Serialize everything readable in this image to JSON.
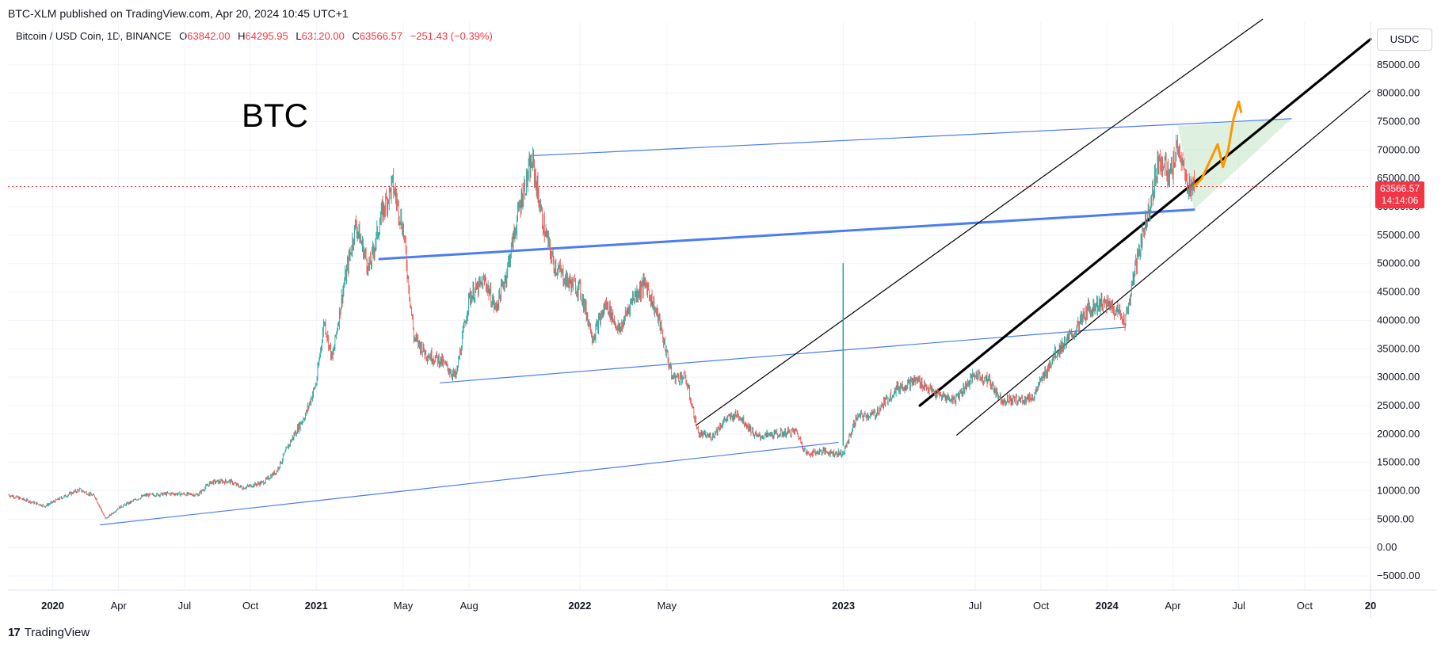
{
  "header": {
    "published": "BTC-XLM published on TradingView.com, Apr 20, 2024 10:45 UTC+1"
  },
  "legend": {
    "symbol": "Bitcoin / USD Coin, 1D, BINANCE",
    "open_label": "O",
    "open": "63842.00",
    "high_label": "H",
    "high": "64295.95",
    "low_label": "L",
    "low": "63120.00",
    "close_label": "C",
    "close": "63566.57",
    "change": "−251.43 (−0.39%)"
  },
  "annotation": {
    "text": "BTC"
  },
  "currency_button": "USDC",
  "last_price": {
    "price": "63566.57",
    "countdown": "14:14:06",
    "value": 63566.57
  },
  "footer": {
    "brand": "TradingView",
    "logo_glyph": "17"
  },
  "colors": {
    "up": "#26a69a",
    "down": "#ef5350",
    "trend_blue": "#4a7cf5",
    "channel": "#000000",
    "projection": "#ff9800",
    "zone": "#c8e6c9",
    "price_tag": "#f23645"
  },
  "chart_data": {
    "type": "line",
    "title": "Bitcoin / USD Coin, 1D, BINANCE",
    "xlabel": "",
    "ylabel": "USDC",
    "ylim": [
      -7500,
      92500
    ],
    "xlim": [
      2019.83,
      2025.0
    ],
    "grid": true,
    "y_ticks": [
      -5000,
      0,
      5000,
      10000,
      15000,
      20000,
      25000,
      30000,
      35000,
      40000,
      45000,
      50000,
      55000,
      60000,
      65000,
      70000,
      75000,
      80000,
      85000
    ],
    "y_tick_labels": [
      "−5000.00",
      "0.00",
      "5000.00",
      "10000.00",
      "15000.00",
      "20000.00",
      "25000.00",
      "30000.00",
      "35000.00",
      "40000.00",
      "45000.00",
      "50000.00",
      "55000.00",
      "60000.00",
      "65000.00",
      "70000.00",
      "75000.00",
      "80000.00",
      "85000.00"
    ],
    "x_ticks": [
      {
        "label": "2020",
        "t": 2020.0,
        "bold": true
      },
      {
        "label": "Apr",
        "t": 2020.25,
        "bold": false
      },
      {
        "label": "Jul",
        "t": 2020.5,
        "bold": false
      },
      {
        "label": "Oct",
        "t": 2020.75,
        "bold": false
      },
      {
        "label": "2021",
        "t": 2021.0,
        "bold": true
      },
      {
        "label": "May",
        "t": 2021.33,
        "bold": false
      },
      {
        "label": "Aug",
        "t": 2021.58,
        "bold": false
      },
      {
        "label": "2022",
        "t": 2022.0,
        "bold": true
      },
      {
        "label": "May",
        "t": 2022.33,
        "bold": false
      },
      {
        "label": "2023",
        "t": 2023.0,
        "bold": true
      },
      {
        "label": "Jul",
        "t": 2023.5,
        "bold": false
      },
      {
        "label": "Oct",
        "t": 2023.75,
        "bold": false
      },
      {
        "label": "2024",
        "t": 2024.0,
        "bold": true
      },
      {
        "label": "Apr",
        "t": 2024.25,
        "bold": false
      },
      {
        "label": "Jul",
        "t": 2024.5,
        "bold": false
      },
      {
        "label": "Oct",
        "t": 2024.75,
        "bold": false
      },
      {
        "label": "20",
        "t": 2025.0,
        "bold": true
      }
    ],
    "series": [
      {
        "name": "BTC/USDC close",
        "points": [
          [
            2019.83,
            9300
          ],
          [
            2019.9,
            8300
          ],
          [
            2019.97,
            7300
          ],
          [
            2020.03,
            8700
          ],
          [
            2020.1,
            10200
          ],
          [
            2020.16,
            9000
          ],
          [
            2020.2,
            5000
          ],
          [
            2020.25,
            7000
          ],
          [
            2020.35,
            9200
          ],
          [
            2020.45,
            9500
          ],
          [
            2020.55,
            9300
          ],
          [
            2020.6,
            11500
          ],
          [
            2020.67,
            11700
          ],
          [
            2020.72,
            10500
          ],
          [
            2020.8,
            11500
          ],
          [
            2020.85,
            13500
          ],
          [
            2020.9,
            18500
          ],
          [
            2020.96,
            23500
          ],
          [
            2021.0,
            29000
          ],
          [
            2021.03,
            40000
          ],
          [
            2021.06,
            33000
          ],
          [
            2021.1,
            45000
          ],
          [
            2021.15,
            57000
          ],
          [
            2021.2,
            49000
          ],
          [
            2021.25,
            59000
          ],
          [
            2021.29,
            64000
          ],
          [
            2021.33,
            56000
          ],
          [
            2021.37,
            37000
          ],
          [
            2021.42,
            34000
          ],
          [
            2021.47,
            33000
          ],
          [
            2021.53,
            30000
          ],
          [
            2021.58,
            44000
          ],
          [
            2021.64,
            47000
          ],
          [
            2021.68,
            42000
          ],
          [
            2021.72,
            48000
          ],
          [
            2021.78,
            62000
          ],
          [
            2021.82,
            68000
          ],
          [
            2021.86,
            57000
          ],
          [
            2021.9,
            50000
          ],
          [
            2021.95,
            47000
          ],
          [
            2022.0,
            45500
          ],
          [
            2022.05,
            37000
          ],
          [
            2022.1,
            43000
          ],
          [
            2022.15,
            38000
          ],
          [
            2022.2,
            44000
          ],
          [
            2022.25,
            46500
          ],
          [
            2022.3,
            40000
          ],
          [
            2022.35,
            30000
          ],
          [
            2022.4,
            30000
          ],
          [
            2022.45,
            20000
          ],
          [
            2022.5,
            19500
          ],
          [
            2022.55,
            22500
          ],
          [
            2022.6,
            23500
          ],
          [
            2022.67,
            19500
          ],
          [
            2022.75,
            20000
          ],
          [
            2022.82,
            20500
          ],
          [
            2022.86,
            16500
          ],
          [
            2022.92,
            17000
          ],
          [
            2022.97,
            16600
          ],
          [
            2023.0,
            16600
          ],
          [
            2023.05,
            23000
          ],
          [
            2023.12,
            23500
          ],
          [
            2023.2,
            28000
          ],
          [
            2023.28,
            29500
          ],
          [
            2023.35,
            27000
          ],
          [
            2023.42,
            26000
          ],
          [
            2023.5,
            30500
          ],
          [
            2023.55,
            29500
          ],
          [
            2023.6,
            26000
          ],
          [
            2023.67,
            26000
          ],
          [
            2023.72,
            26500
          ],
          [
            2023.8,
            34000
          ],
          [
            2023.87,
            37500
          ],
          [
            2023.93,
            42000
          ],
          [
            2023.97,
            43000
          ],
          [
            2024.02,
            42500
          ],
          [
            2024.07,
            40000
          ],
          [
            2024.12,
            52000
          ],
          [
            2024.17,
            62000
          ],
          [
            2024.2,
            69000
          ],
          [
            2024.24,
            65000
          ],
          [
            2024.27,
            71000
          ],
          [
            2024.3,
            64000
          ],
          [
            2024.33,
            63566.57
          ]
        ]
      },
      {
        "name": "Projection",
        "points": [
          [
            2024.33,
            63500
          ],
          [
            2024.36,
            65000
          ],
          [
            2024.39,
            68000
          ],
          [
            2024.42,
            71000
          ],
          [
            2024.44,
            67000
          ],
          [
            2024.46,
            70000
          ],
          [
            2024.48,
            75500
          ],
          [
            2024.5,
            78500
          ],
          [
            2024.51,
            76500
          ]
        ]
      }
    ],
    "drawings": [
      {
        "name": "long-term-support",
        "style": "thin-blue",
        "from": [
          2020.18,
          4000
        ],
        "to": [
          2022.98,
          18500
        ]
      },
      {
        "name": "mid-channel-line",
        "style": "thin-blue",
        "from": [
          2021.47,
          29000
        ],
        "to": [
          2024.07,
          38800
        ]
      },
      {
        "name": "thick-blue-trendline",
        "style": "thick-blue",
        "from": [
          2021.24,
          50800
        ],
        "to": [
          2024.33,
          59500
        ]
      },
      {
        "name": "top-resistance",
        "style": "thin-blue",
        "from": [
          2021.82,
          69000
        ],
        "to": [
          2024.7,
          75500
        ]
      },
      {
        "name": "channel-upper",
        "style": "thin-black",
        "from": [
          2022.44,
          21500
        ],
        "to": [
          2024.59,
          93000
        ]
      },
      {
        "name": "channel-middle",
        "style": "thick-black",
        "from": [
          2023.29,
          25000
        ],
        "to": [
          2025.0,
          89500
        ]
      },
      {
        "name": "channel-lower",
        "style": "thin-black",
        "from": [
          2023.43,
          19800
        ],
        "to": [
          2025.0,
          80500
        ]
      },
      {
        "name": "spike-2023",
        "style": "green-vertical",
        "from": [
          2022.999,
          18000
        ],
        "to": [
          2022.999,
          50000
        ]
      }
    ],
    "annotations": [
      "BTC"
    ]
  }
}
